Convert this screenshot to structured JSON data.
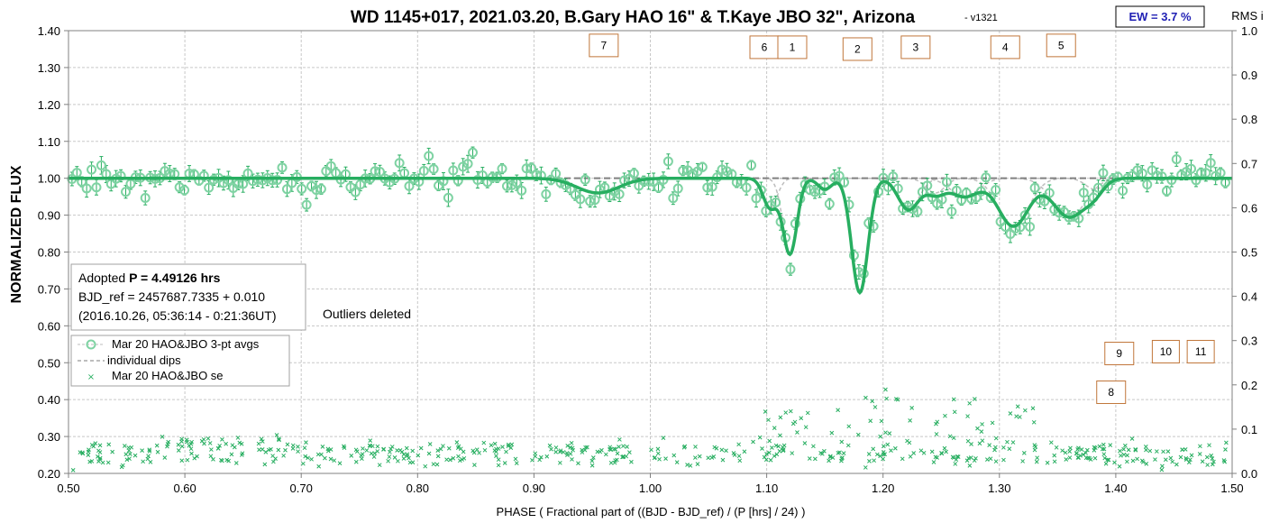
{
  "chart_data": {
    "type": "scatter",
    "title": "WD 1145+017, 2021.03.20, B.Gary HAO 16\" & T.Kaye JBO 32\", Arizona",
    "version": "- v1321",
    "xlabel": "PHASE ( Fractional part of ((BJD - BJD_ref) / (P [hrs] / 24) )",
    "ylabel": "NORMALIZED FLUX",
    "y2label": "RMS i",
    "xlim": [
      0.5,
      1.5
    ],
    "ylim": [
      0.2,
      1.4
    ],
    "y2lim": [
      0.0,
      1.0
    ],
    "xticks": [
      "0.50",
      "0.60",
      "0.70",
      "0.80",
      "0.90",
      "1.00",
      "1.10",
      "1.20",
      "1.30",
      "1.40",
      "1.50"
    ],
    "yticks": [
      "0.20",
      "0.30",
      "0.40",
      "0.50",
      "0.60",
      "0.70",
      "0.80",
      "0.90",
      "1.00",
      "1.10",
      "1.20",
      "1.30",
      "1.40"
    ],
    "y2ticks": [
      "0.0",
      "0.1",
      "0.2",
      "0.3",
      "0.4",
      "0.5",
      "0.6",
      "0.7",
      "0.8",
      "0.9",
      "1.0"
    ],
    "grid": true,
    "legend_position": "lower-left",
    "legend": [
      "Mar 20 HAO&JBO 3-pt avgs",
      "individual dips",
      "Mar 20 HAO&JBO se"
    ],
    "ew_label": "EW = 3.7 %",
    "info_lines": [
      "Adopted ",
      "P = 4.49126 hrs",
      "BJD_ref = 2457687.7335 + 0.010",
      "(2016.10.26, 05:36:14 - 0:21:36UT)"
    ],
    "outliers_note": "Outliers deleted",
    "colors": {
      "data": "#27ae60",
      "model": "#27ae60",
      "dips": "#a9a9a9",
      "baseline": "#7f7f7f",
      "box_border": "#c0763a",
      "ew_text": "#1f1fb4"
    },
    "dips": [
      {
        "label": "1",
        "center": 1.12,
        "depth": 0.205,
        "width": 0.006
      },
      {
        "label": "2",
        "center": 1.18,
        "depth": 0.31,
        "width": 0.007
      },
      {
        "label": "3",
        "center": 1.222,
        "depth": 0.085,
        "width": 0.009
      },
      {
        "label": "4",
        "center": 1.312,
        "depth": 0.13,
        "width": 0.013
      },
      {
        "label": "5",
        "center": 1.36,
        "depth": 0.105,
        "width": 0.014
      },
      {
        "label": "6",
        "center": 1.103,
        "depth": 0.08,
        "width": 0.006
      },
      {
        "label": "7",
        "center": 0.955,
        "depth": 0.04,
        "width": 0.018
      },
      {
        "label": "8",
        "center": 1.382,
        "depth": 0.03,
        "width": 0.008
      },
      {
        "label": "9",
        "center": 1.27,
        "depth": 0.05,
        "width": 0.012
      },
      {
        "label": "10",
        "center": 1.245,
        "depth": 0.04,
        "width": 0.008
      },
      {
        "label": "11",
        "center": 1.15,
        "depth": 0.03,
        "width": 0.006
      }
    ],
    "dip_boxes": [
      {
        "label": "7",
        "x": 0.96,
        "y": 1.36
      },
      {
        "label": "6",
        "x": 1.098,
        "y": 1.355
      },
      {
        "label": "1",
        "x": 1.122,
        "y": 1.355
      },
      {
        "label": "2",
        "x": 1.178,
        "y": 1.35
      },
      {
        "label": "3",
        "x": 1.228,
        "y": 1.355
      },
      {
        "label": "4",
        "x": 1.305,
        "y": 1.355
      },
      {
        "label": "5",
        "x": 1.353,
        "y": 1.36
      },
      {
        "label": "9",
        "x": 1.403,
        "y": 0.525
      },
      {
        "label": "10",
        "x": 1.443,
        "y": 0.53
      },
      {
        "label": "11",
        "x": 1.473,
        "y": 0.53
      },
      {
        "label": "8",
        "x": 1.396,
        "y": 0.42
      }
    ],
    "seed": 1321
  }
}
